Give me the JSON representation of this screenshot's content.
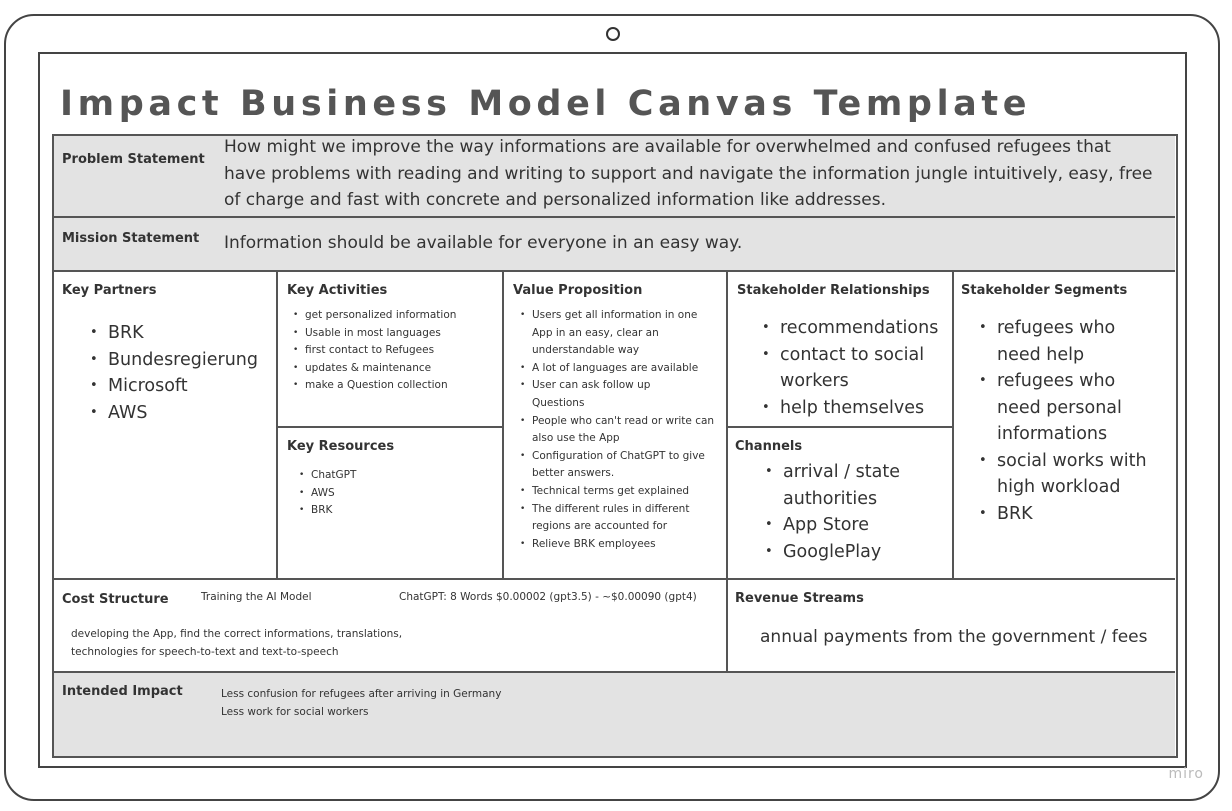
{
  "title": "Impact Business Model Canvas Template",
  "problem": {
    "label": "Problem Statement",
    "lines": [
      "How might we improve the way informations are available for overwhelmed and confused  refugees that",
      "have problems with reading and writing to support and navigate the information jungle intuitively, easy, free",
      "of charge and fast with concrete and personalized information like addresses."
    ]
  },
  "mission": {
    "label": "Mission Statement",
    "text": "Information should be available for everyone in an easy way."
  },
  "key_partners": {
    "label": "Key Partners",
    "items": [
      "BRK",
      "Bundesregierung",
      "Microsoft",
      "AWS"
    ]
  },
  "key_activities": {
    "label": "Key Activities",
    "items": [
      "get personalized information",
      "Usable in most languages",
      "first contact to Refugees",
      "updates & maintenance",
      "make a Question collection"
    ]
  },
  "key_resources": {
    "label": "Key Resources",
    "items": [
      "ChatGPT",
      "AWS",
      "BRK"
    ]
  },
  "value_proposition": {
    "label": "Value Proposition",
    "items": [
      "Users get all information in one App in an easy, clear an understandable way",
      "A lot of languages are available",
      "User can ask follow up Questions",
      "People who can't read or write can also use the App",
      "Configuration of ChatGPT to give better answers.",
      "Technical terms get explained",
      "The different rules in different regions are accounted for",
      "Relieve BRK employees"
    ]
  },
  "stakeholder_relationships": {
    "label": "Stakeholder Relationships",
    "items": [
      "recommendations",
      "contact to social workers",
      "help themselves"
    ]
  },
  "channels": {
    "label": "Channels",
    "items": [
      "arrival / state authorities",
      "App Store",
      "GooglePlay"
    ]
  },
  "stakeholder_segments": {
    "label": "Stakeholder Segments",
    "items": [
      "refugees who need help",
      "refugees who need personal informations",
      "social works with high workload",
      "BRK"
    ]
  },
  "cost_structure": {
    "label": "Cost Structure",
    "note1": "Training the AI Model",
    "note2": "ChatGPT: 8 Words $0.00002 (gpt3.5) - ~$0.00090 (gpt4)",
    "line1": "developing the App, find the correct informations, translations,",
    "line2": "technologies for speech-to-text and text-to-speech"
  },
  "revenue_streams": {
    "label": "Revenue Streams",
    "text": "annual payments from the government / fees"
  },
  "intended_impact": {
    "label": "Intended Impact",
    "line1": "Less confusion for refugees after arriving in Germany",
    "line2": "Less work for social workers"
  },
  "watermark": "miro"
}
